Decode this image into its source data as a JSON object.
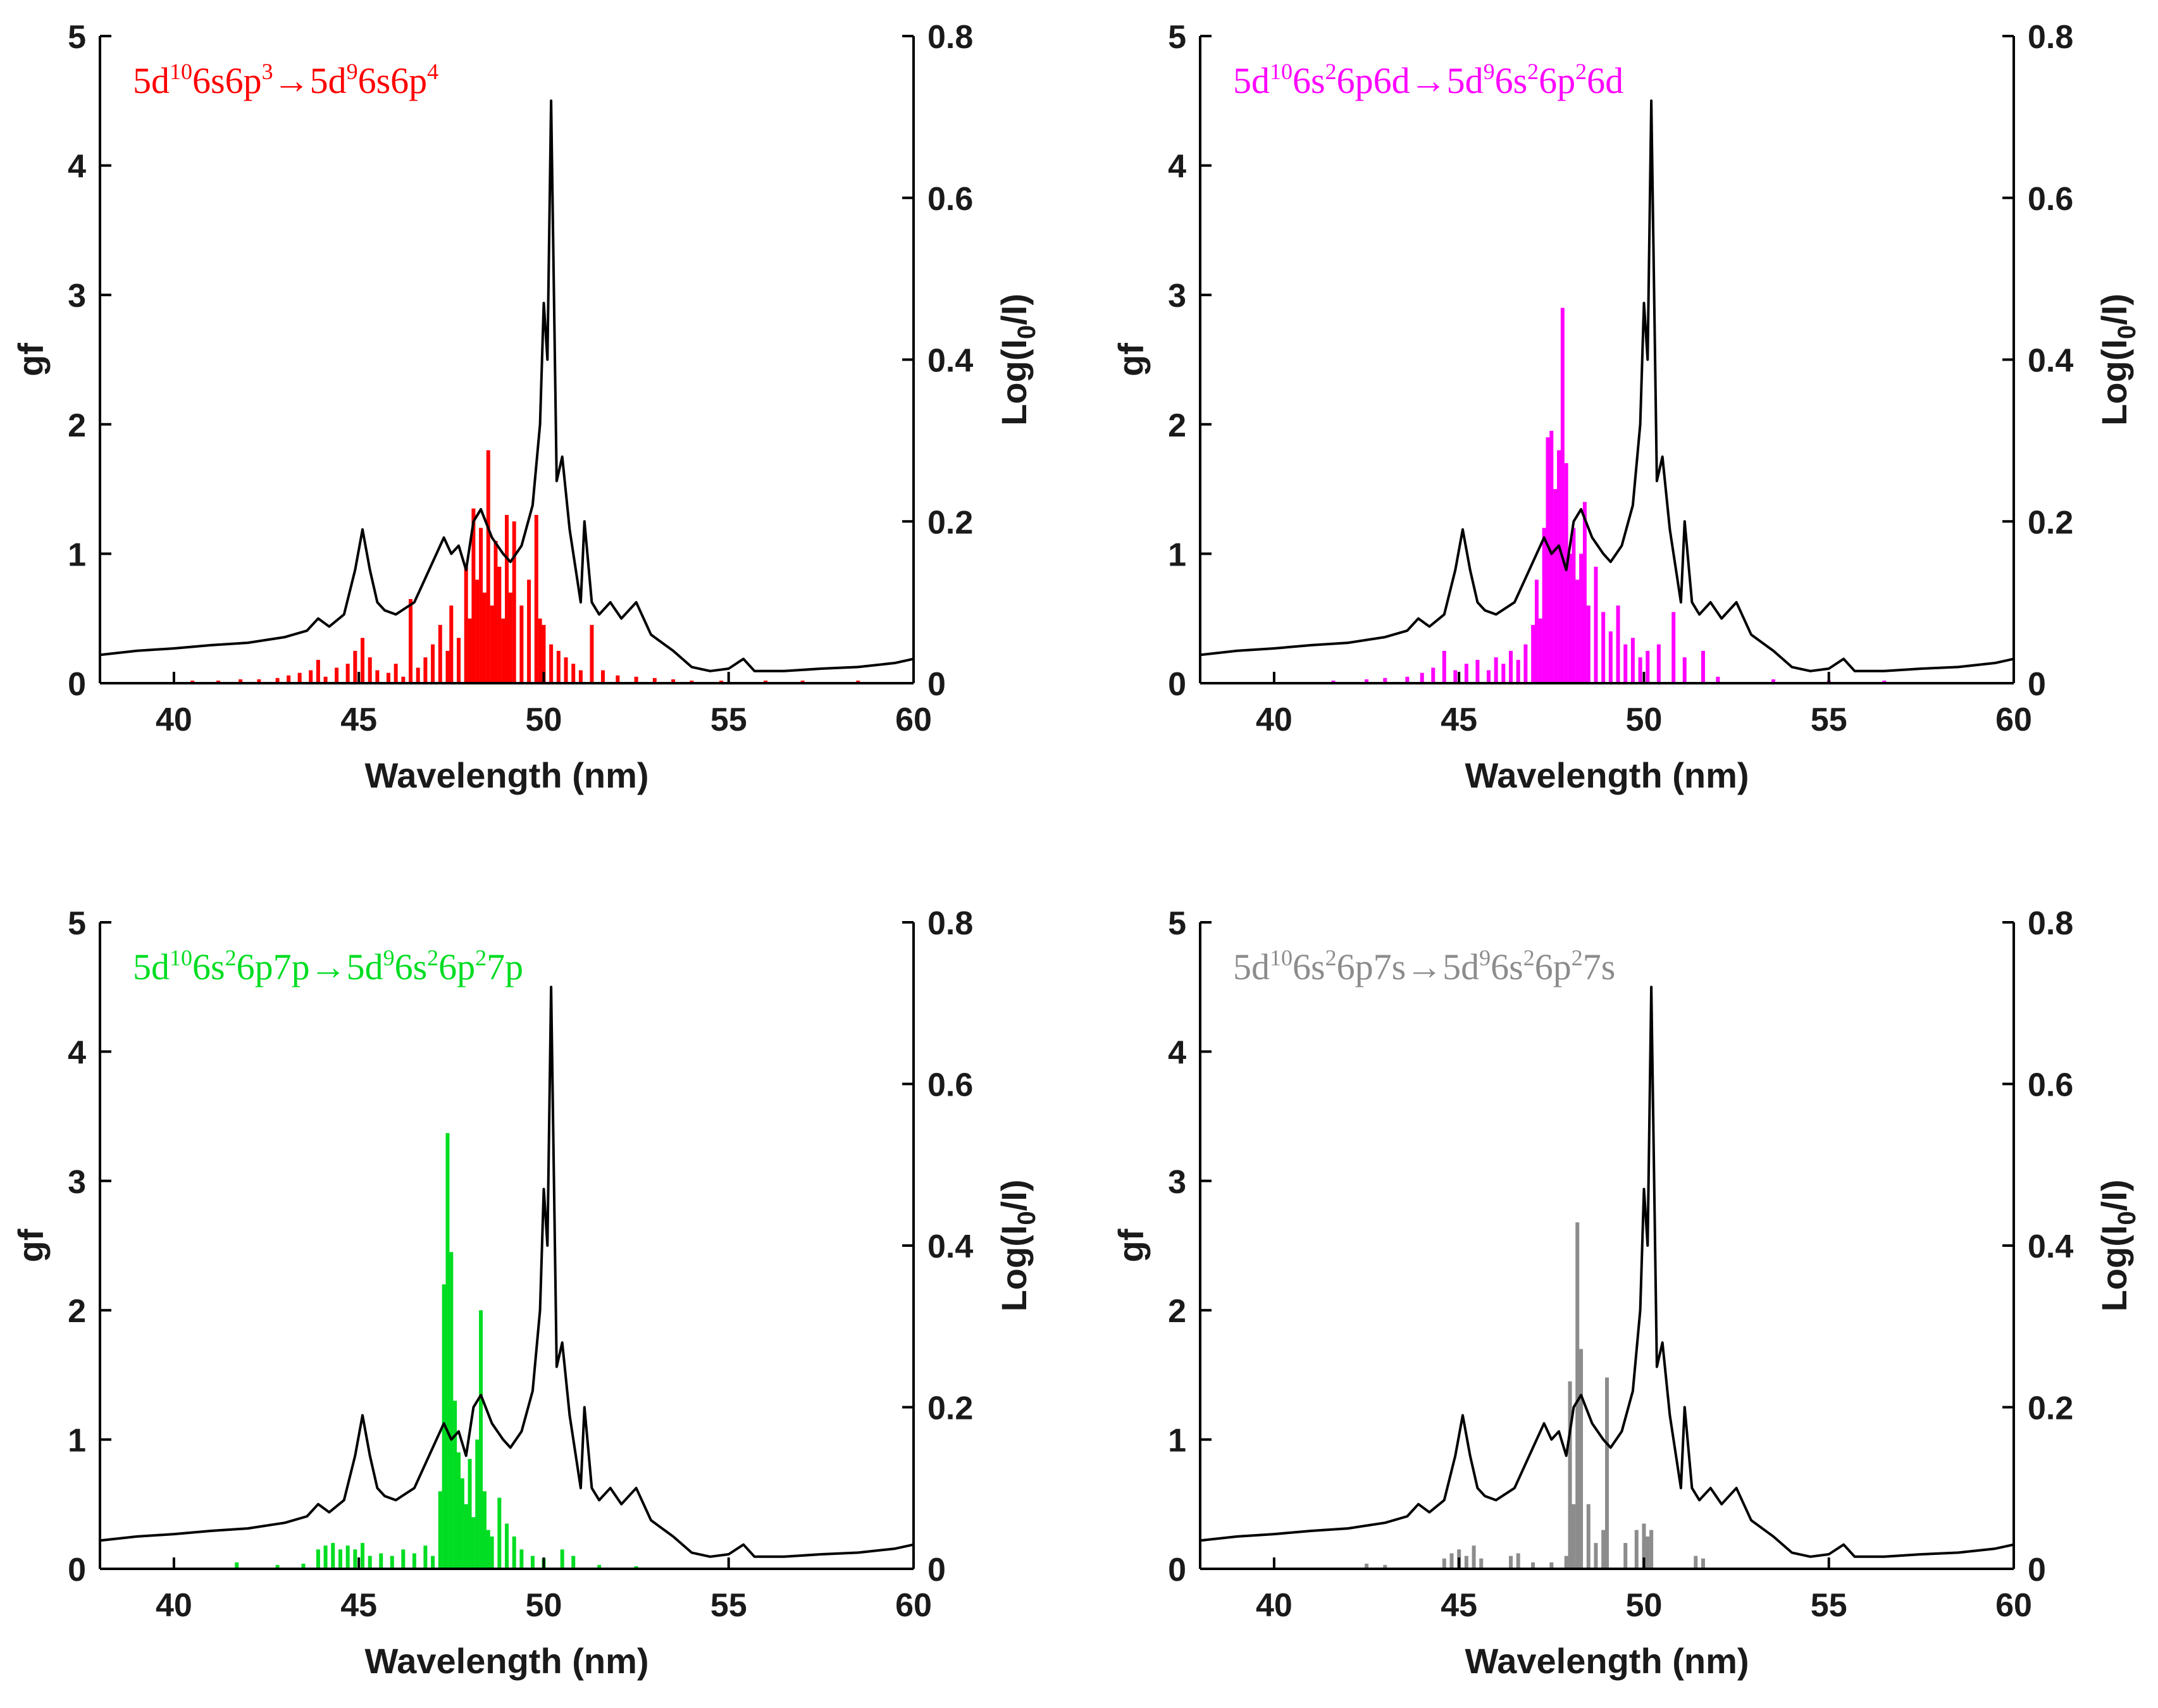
{
  "chart_data": [
    {
      "type": "bar",
      "title": "5d¹⁰6s6p³→5d⁹6s6p⁴",
      "title_parts": [
        {
          "t": "5d"
        },
        {
          "t": "10",
          "sup": true
        },
        {
          "t": "6s6p"
        },
        {
          "t": "3",
          "sup": true
        },
        {
          "t": "→5d"
        },
        {
          "t": "9",
          "sup": true
        },
        {
          "t": "6s6p"
        },
        {
          "t": "4",
          "sup": true
        }
      ],
      "color": "#ff0000",
      "xlabel": "Wavelength (nm)",
      "ylabel": "gf",
      "y2label": "Log(I0/I)",
      "xlim": [
        38,
        60
      ],
      "ylim": [
        0,
        5
      ],
      "y2lim": [
        0,
        0.8
      ],
      "xticks": [
        "40",
        "45",
        "50",
        "55",
        "60"
      ],
      "yticks": [
        "0",
        "1",
        "2",
        "3",
        "4",
        "5"
      ],
      "y2ticks": [
        "0",
        "0.2",
        "0.4",
        "0.6",
        "0.8"
      ],
      "gf_lines": [
        [
          40.5,
          0.02
        ],
        [
          41.2,
          0.02
        ],
        [
          41.8,
          0.03
        ],
        [
          42.3,
          0.03
        ],
        [
          42.8,
          0.04
        ],
        [
          43.1,
          0.06
        ],
        [
          43.4,
          0.08
        ],
        [
          43.7,
          0.1
        ],
        [
          43.9,
          0.18
        ],
        [
          44.1,
          0.05
        ],
        [
          44.4,
          0.12
        ],
        [
          44.7,
          0.15
        ],
        [
          44.9,
          0.25
        ],
        [
          45.1,
          0.35
        ],
        [
          45.3,
          0.2
        ],
        [
          45.5,
          0.1
        ],
        [
          45.8,
          0.08
        ],
        [
          46.0,
          0.15
        ],
        [
          46.2,
          0.05
        ],
        [
          46.4,
          0.65
        ],
        [
          46.6,
          0.12
        ],
        [
          46.8,
          0.2
        ],
        [
          47.0,
          0.3
        ],
        [
          47.2,
          0.45
        ],
        [
          47.4,
          0.25
        ],
        [
          47.5,
          0.6
        ],
        [
          47.7,
          0.35
        ],
        [
          47.9,
          0.9
        ],
        [
          48.0,
          0.5
        ],
        [
          48.1,
          1.35
        ],
        [
          48.2,
          0.8
        ],
        [
          48.3,
          1.2
        ],
        [
          48.4,
          0.7
        ],
        [
          48.5,
          1.8
        ],
        [
          48.6,
          0.6
        ],
        [
          48.7,
          1.1
        ],
        [
          48.8,
          0.9
        ],
        [
          48.9,
          0.5
        ],
        [
          49.0,
          1.3
        ],
        [
          49.1,
          0.7
        ],
        [
          49.2,
          1.25
        ],
        [
          49.4,
          0.6
        ],
        [
          49.6,
          0.8
        ],
        [
          49.8,
          1.3
        ],
        [
          49.9,
          0.5
        ],
        [
          50.0,
          0.45
        ],
        [
          50.2,
          0.3
        ],
        [
          50.4,
          0.25
        ],
        [
          50.6,
          0.2
        ],
        [
          50.8,
          0.15
        ],
        [
          51.0,
          0.1
        ],
        [
          51.3,
          0.45
        ],
        [
          51.6,
          0.1
        ],
        [
          52.0,
          0.06
        ],
        [
          52.5,
          0.05
        ],
        [
          53.0,
          0.04
        ],
        [
          53.5,
          0.03
        ],
        [
          54.0,
          0.02
        ],
        [
          54.8,
          0.02
        ],
        [
          56.0,
          0.02
        ],
        [
          57.0,
          0.02
        ],
        [
          58.5,
          0.02
        ]
      ]
    },
    {
      "type": "bar",
      "title": "5d¹⁰6s²6p6d→5d⁹6s²6p²6d",
      "title_parts": [
        {
          "t": "5d"
        },
        {
          "t": "10",
          "sup": true
        },
        {
          "t": "6s"
        },
        {
          "t": "2",
          "sup": true
        },
        {
          "t": "6p6d→5d"
        },
        {
          "t": "9",
          "sup": true
        },
        {
          "t": "6s"
        },
        {
          "t": "2",
          "sup": true
        },
        {
          "t": "6p"
        },
        {
          "t": "2",
          "sup": true
        },
        {
          "t": "6d"
        }
      ],
      "color": "#ff00ff",
      "xlabel": "Wavelength (nm)",
      "ylabel": "gf",
      "y2label": "Log(I0/I)",
      "xlim": [
        38,
        60
      ],
      "ylim": [
        0,
        5
      ],
      "y2lim": [
        0,
        0.8
      ],
      "xticks": [
        "40",
        "45",
        "50",
        "55",
        "60"
      ],
      "yticks": [
        "0",
        "1",
        "2",
        "3",
        "4",
        "5"
      ],
      "y2ticks": [
        "0",
        "0.2",
        "0.4",
        "0.6",
        "0.8"
      ],
      "gf_lines": [
        [
          41.6,
          0.02
        ],
        [
          42.5,
          0.03
        ],
        [
          43.0,
          0.04
        ],
        [
          43.6,
          0.05
        ],
        [
          44.0,
          0.08
        ],
        [
          44.3,
          0.12
        ],
        [
          44.6,
          0.25
        ],
        [
          44.9,
          0.1
        ],
        [
          45.2,
          0.15
        ],
        [
          45.5,
          0.18
        ],
        [
          45.8,
          0.1
        ],
        [
          46.0,
          0.2
        ],
        [
          46.2,
          0.15
        ],
        [
          46.4,
          0.25
        ],
        [
          46.6,
          0.18
        ],
        [
          46.8,
          0.3
        ],
        [
          47.0,
          0.45
        ],
        [
          47.1,
          0.8
        ],
        [
          47.2,
          0.5
        ],
        [
          47.3,
          1.2
        ],
        [
          47.4,
          1.9
        ],
        [
          47.5,
          1.95
        ],
        [
          47.6,
          1.5
        ],
        [
          47.7,
          1.8
        ],
        [
          47.8,
          2.9
        ],
        [
          47.9,
          1.7
        ],
        [
          48.0,
          1.0
        ],
        [
          48.1,
          1.2
        ],
        [
          48.2,
          0.8
        ],
        [
          48.3,
          1.0
        ],
        [
          48.4,
          1.4
        ],
        [
          48.5,
          0.6
        ],
        [
          48.7,
          0.9
        ],
        [
          48.9,
          0.55
        ],
        [
          49.1,
          0.4
        ],
        [
          49.3,
          0.6
        ],
        [
          49.5,
          0.3
        ],
        [
          49.7,
          0.35
        ],
        [
          49.9,
          0.2
        ],
        [
          50.1,
          0.25
        ],
        [
          50.4,
          0.3
        ],
        [
          50.8,
          0.55
        ],
        [
          51.1,
          0.2
        ],
        [
          51.6,
          0.25
        ],
        [
          52.0,
          0.05
        ],
        [
          53.5,
          0.03
        ],
        [
          55.0,
          0.02
        ],
        [
          56.5,
          0.02
        ]
      ]
    },
    {
      "type": "bar",
      "title": "5d¹⁰6s²6p7p→5d⁹6s²6p²7p",
      "title_parts": [
        {
          "t": "5d"
        },
        {
          "t": "10",
          "sup": true
        },
        {
          "t": "6s"
        },
        {
          "t": "2",
          "sup": true
        },
        {
          "t": "6p7p→5d"
        },
        {
          "t": "9",
          "sup": true
        },
        {
          "t": "6s"
        },
        {
          "t": "2",
          "sup": true
        },
        {
          "t": "6p"
        },
        {
          "t": "2",
          "sup": true
        },
        {
          "t": "7p"
        }
      ],
      "color": "#00dd22",
      "xlabel": "Wavelength (nm)",
      "ylabel": "gf",
      "y2label": "Log(I0/I)",
      "xlim": [
        38,
        60
      ],
      "ylim": [
        0,
        5
      ],
      "y2lim": [
        0,
        0.8
      ],
      "xticks": [
        "40",
        "45",
        "50",
        "55",
        "60"
      ],
      "yticks": [
        "0",
        "1",
        "2",
        "3",
        "4",
        "5"
      ],
      "y2ticks": [
        "0",
        "0.2",
        "0.4",
        "0.6",
        "0.8"
      ],
      "gf_lines": [
        [
          41.7,
          0.05
        ],
        [
          42.8,
          0.03
        ],
        [
          43.5,
          0.04
        ],
        [
          43.9,
          0.15
        ],
        [
          44.1,
          0.18
        ],
        [
          44.3,
          0.2
        ],
        [
          44.5,
          0.15
        ],
        [
          44.7,
          0.18
        ],
        [
          44.9,
          0.15
        ],
        [
          45.1,
          0.2
        ],
        [
          45.3,
          0.1
        ],
        [
          45.6,
          0.12
        ],
        [
          45.9,
          0.1
        ],
        [
          46.2,
          0.15
        ],
        [
          46.5,
          0.12
        ],
        [
          46.8,
          0.18
        ],
        [
          47.0,
          0.1
        ],
        [
          47.2,
          0.6
        ],
        [
          47.3,
          2.2
        ],
        [
          47.4,
          3.37
        ],
        [
          47.5,
          2.45
        ],
        [
          47.6,
          1.3
        ],
        [
          47.7,
          0.9
        ],
        [
          47.8,
          0.7
        ],
        [
          47.9,
          0.5
        ],
        [
          48.0,
          0.85
        ],
        [
          48.1,
          0.4
        ],
        [
          48.2,
          1.0
        ],
        [
          48.3,
          2.0
        ],
        [
          48.4,
          0.6
        ],
        [
          48.5,
          0.3
        ],
        [
          48.6,
          0.25
        ],
        [
          48.8,
          0.55
        ],
        [
          49.0,
          0.35
        ],
        [
          49.2,
          0.25
        ],
        [
          49.4,
          0.15
        ],
        [
          49.7,
          0.1
        ],
        [
          50.0,
          0.08
        ],
        [
          50.5,
          0.15
        ],
        [
          50.8,
          0.1
        ],
        [
          51.5,
          0.03
        ],
        [
          52.5,
          0.02
        ]
      ]
    },
    {
      "type": "bar",
      "title": "5d¹⁰6s²6p7s→5d⁹6s²6p²7s",
      "title_parts": [
        {
          "t": "5d"
        },
        {
          "t": "10",
          "sup": true
        },
        {
          "t": "6s"
        },
        {
          "t": "2",
          "sup": true
        },
        {
          "t": "6p7s→5d"
        },
        {
          "t": "9",
          "sup": true
        },
        {
          "t": "6s"
        },
        {
          "t": "2",
          "sup": true
        },
        {
          "t": "6p"
        },
        {
          "t": "2",
          "sup": true
        },
        {
          "t": "7s"
        }
      ],
      "color": "#8c8c8c",
      "xlabel": "Wavelength (nm)",
      "ylabel": "gf",
      "y2label": "Log(I0/I)",
      "xlim": [
        38,
        60
      ],
      "ylim": [
        0,
        5
      ],
      "y2lim": [
        0,
        0.8
      ],
      "xticks": [
        "40",
        "45",
        "50",
        "55",
        "60"
      ],
      "yticks": [
        "0",
        "1",
        "2",
        "3",
        "4",
        "5"
      ],
      "y2ticks": [
        "0",
        "0.2",
        "0.4",
        "0.6",
        "0.8"
      ],
      "gf_lines": [
        [
          42.5,
          0.04
        ],
        [
          43.0,
          0.03
        ],
        [
          44.6,
          0.08
        ],
        [
          44.8,
          0.12
        ],
        [
          45.0,
          0.15
        ],
        [
          45.2,
          0.1
        ],
        [
          45.4,
          0.18
        ],
        [
          45.6,
          0.08
        ],
        [
          46.4,
          0.1
        ],
        [
          46.6,
          0.12
        ],
        [
          47.0,
          0.05
        ],
        [
          47.5,
          0.05
        ],
        [
          47.9,
          0.1
        ],
        [
          48.0,
          1.45
        ],
        [
          48.1,
          0.5
        ],
        [
          48.2,
          2.68
        ],
        [
          48.3,
          1.7
        ],
        [
          48.5,
          0.5
        ],
        [
          48.7,
          0.2
        ],
        [
          48.9,
          0.3
        ],
        [
          49.0,
          1.48
        ],
        [
          49.5,
          0.2
        ],
        [
          49.8,
          0.3
        ],
        [
          50.0,
          0.35
        ],
        [
          50.1,
          0.25
        ],
        [
          50.2,
          0.3
        ],
        [
          51.4,
          0.1
        ],
        [
          51.6,
          0.08
        ]
      ]
    }
  ],
  "spectrum": {
    "name": "Log(I0/I)",
    "x": [
      38,
      39,
      40,
      41,
      42,
      43,
      43.6,
      43.9,
      44.2,
      44.6,
      44.9,
      45.1,
      45.3,
      45.5,
      45.7,
      46.0,
      46.5,
      46.8,
      47.1,
      47.3,
      47.5,
      47.7,
      47.9,
      48.1,
      48.3,
      48.6,
      48.9,
      49.1,
      49.4,
      49.7,
      49.9,
      50.0,
      50.1,
      50.2,
      50.35,
      50.5,
      50.7,
      51.0,
      51.1,
      51.3,
      51.5,
      51.8,
      52.1,
      52.5,
      52.9,
      53.5,
      54.0,
      54.5,
      55.0,
      55.4,
      55.7,
      56.5,
      57.5,
      58.5,
      59.5,
      60
    ],
    "y": [
      0.035,
      0.04,
      0.043,
      0.047,
      0.05,
      0.057,
      0.065,
      0.08,
      0.07,
      0.085,
      0.14,
      0.19,
      0.14,
      0.1,
      0.09,
      0.085,
      0.1,
      0.13,
      0.16,
      0.18,
      0.16,
      0.17,
      0.14,
      0.2,
      0.215,
      0.18,
      0.16,
      0.15,
      0.17,
      0.22,
      0.32,
      0.47,
      0.4,
      0.72,
      0.25,
      0.28,
      0.19,
      0.1,
      0.2,
      0.1,
      0.085,
      0.1,
      0.08,
      0.1,
      0.06,
      0.04,
      0.02,
      0.015,
      0.018,
      0.03,
      0.015,
      0.015,
      0.018,
      0.02,
      0.025,
      0.03
    ]
  }
}
